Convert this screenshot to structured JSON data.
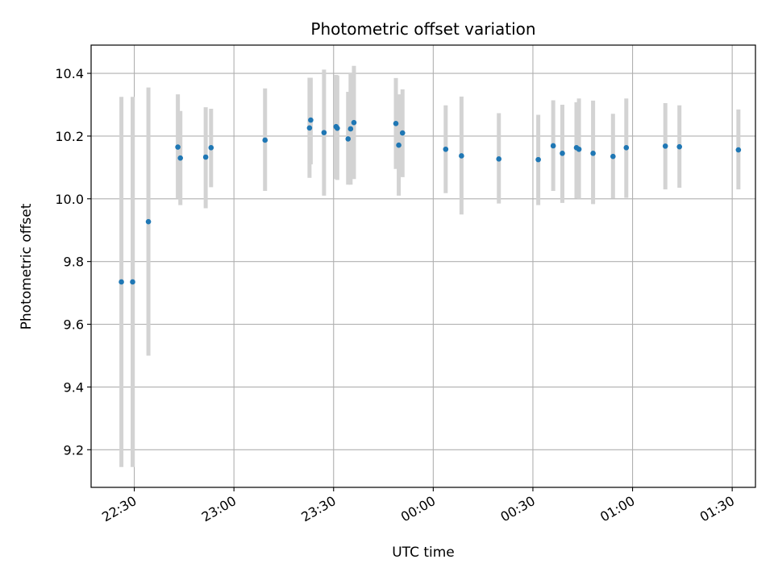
{
  "chart_data": {
    "type": "scatter",
    "title": "Photometric offset variation",
    "xlabel": "UTC time",
    "ylabel": "Photometric offset",
    "grid": true,
    "legend": "none",
    "colors": {
      "points": "#1f77b4",
      "errorbars": "#d3d3d3",
      "grid": "#b0b0b0"
    },
    "xlim": [
      "22:17",
      "01:37"
    ],
    "ylim": [
      9.08,
      10.49
    ],
    "xticks": [
      "22:30",
      "23:00",
      "23:30",
      "00:00",
      "00:30",
      "01:00",
      "01:30"
    ],
    "yticks": [
      "9.2",
      "9.4",
      "9.6",
      "9.8",
      "10.0",
      "10.2",
      "10.4"
    ],
    "points": [
      {
        "x": "22:26:07",
        "y": 9.735,
        "ylow": 9.145,
        "yhigh": 10.325
      },
      {
        "x": "22:29:30",
        "y": 9.735,
        "ylow": 9.145,
        "yhigh": 10.325
      },
      {
        "x": "22:34:15",
        "y": 9.927,
        "ylow": 9.5,
        "yhigh": 10.355
      },
      {
        "x": "22:43:07",
        "y": 10.165,
        "ylow": 10.0,
        "yhigh": 10.333
      },
      {
        "x": "22:43:52",
        "y": 10.13,
        "ylow": 9.98,
        "yhigh": 10.28
      },
      {
        "x": "22:51:30",
        "y": 10.133,
        "ylow": 9.97,
        "yhigh": 10.292
      },
      {
        "x": "22:53:07",
        "y": 10.163,
        "ylow": 10.037,
        "yhigh": 10.287
      },
      {
        "x": "23:09:22",
        "y": 10.187,
        "ylow": 10.025,
        "yhigh": 10.352
      },
      {
        "x": "23:22:45",
        "y": 10.226,
        "ylow": 10.067,
        "yhigh": 10.386
      },
      {
        "x": "23:23:07",
        "y": 10.251,
        "ylow": 10.11,
        "yhigh": 10.386
      },
      {
        "x": "23:27:07",
        "y": 10.211,
        "ylow": 10.01,
        "yhigh": 10.412
      },
      {
        "x": "23:30:45",
        "y": 10.23,
        "ylow": 10.063,
        "yhigh": 10.395
      },
      {
        "x": "23:31:07",
        "y": 10.225,
        "ylow": 10.06,
        "yhigh": 10.393
      },
      {
        "x": "23:34:22",
        "y": 10.191,
        "ylow": 10.045,
        "yhigh": 10.341
      },
      {
        "x": "23:35:07",
        "y": 10.223,
        "ylow": 10.045,
        "yhigh": 10.4
      },
      {
        "x": "23:36:07",
        "y": 10.243,
        "ylow": 10.063,
        "yhigh": 10.424
      },
      {
        "x": "23:48:45",
        "y": 10.24,
        "ylow": 10.095,
        "yhigh": 10.385
      },
      {
        "x": "23:49:37",
        "y": 10.171,
        "ylow": 10.01,
        "yhigh": 10.333
      },
      {
        "x": "23:50:45",
        "y": 10.21,
        "ylow": 10.069,
        "yhigh": 10.349
      },
      {
        "x": "00:03:45",
        "y": 10.158,
        "ylow": 10.018,
        "yhigh": 10.298
      },
      {
        "x": "00:08:30",
        "y": 10.137,
        "ylow": 9.95,
        "yhigh": 10.326
      },
      {
        "x": "00:19:45",
        "y": 10.127,
        "ylow": 9.985,
        "yhigh": 10.273
      },
      {
        "x": "00:31:37",
        "y": 10.125,
        "ylow": 9.98,
        "yhigh": 10.268
      },
      {
        "x": "00:36:07",
        "y": 10.169,
        "ylow": 10.025,
        "yhigh": 10.314
      },
      {
        "x": "00:38:52",
        "y": 10.145,
        "ylow": 9.987,
        "yhigh": 10.3
      },
      {
        "x": "00:43:07",
        "y": 10.163,
        "ylow": 10.001,
        "yhigh": 10.308
      },
      {
        "x": "00:43:52",
        "y": 10.158,
        "ylow": 10.0,
        "yhigh": 10.32
      },
      {
        "x": "00:48:07",
        "y": 10.145,
        "ylow": 9.983,
        "yhigh": 10.313
      },
      {
        "x": "00:54:07",
        "y": 10.135,
        "ylow": 10.001,
        "yhigh": 10.271
      },
      {
        "x": "00:58:07",
        "y": 10.163,
        "ylow": 10.003,
        "yhigh": 10.32
      },
      {
        "x": "01:09:52",
        "y": 10.168,
        "ylow": 10.03,
        "yhigh": 10.305
      },
      {
        "x": "01:14:07",
        "y": 10.166,
        "ylow": 10.035,
        "yhigh": 10.298
      },
      {
        "x": "01:31:52",
        "y": 10.156,
        "ylow": 10.03,
        "yhigh": 10.285
      }
    ]
  }
}
